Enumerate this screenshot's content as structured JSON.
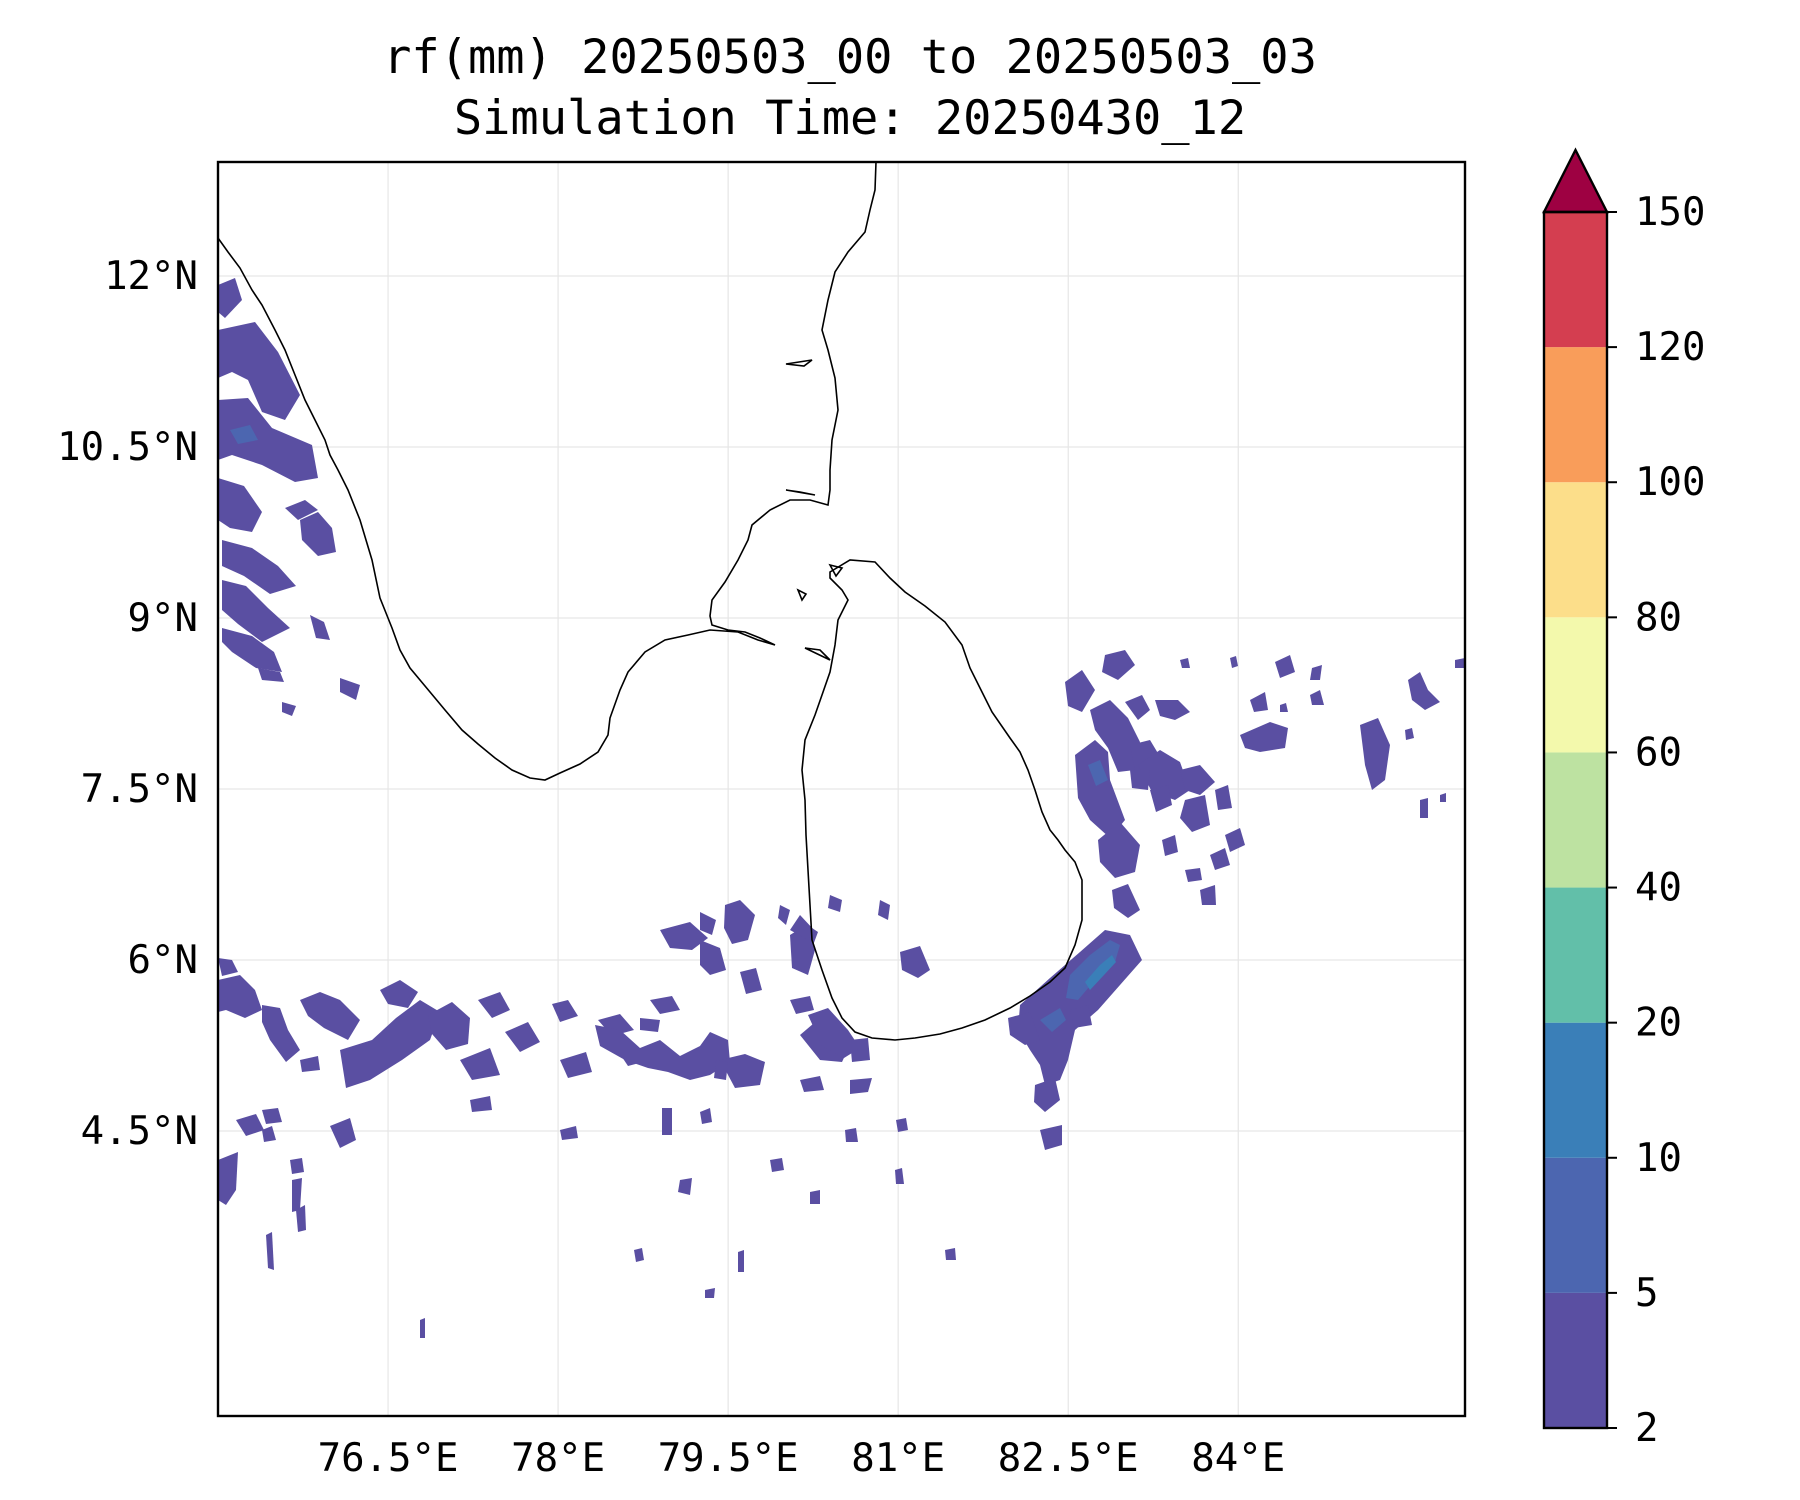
{
  "title": "rf(mm) 20250503_00 to 20250503_03",
  "subtitle": "Simulation Time: 20250430_12",
  "map": {
    "region": "South India and Sri Lanka",
    "lon_range": [
      75.0,
      86.0
    ],
    "lat_range": [
      2.0,
      13.0
    ],
    "lon_ticks": [
      76.5,
      78,
      79.5,
      81,
      82.5,
      84
    ],
    "lon_tick_labels": [
      "76.5°E",
      "78°E",
      "79.5°E",
      "81°E",
      "82.5°E",
      "84°E"
    ],
    "lat_ticks": [
      12,
      10.5,
      9,
      7.5,
      6,
      4.5
    ],
    "lat_tick_labels": [
      "12°N",
      "10.5°N",
      "9°N",
      "7.5°N",
      "6°N",
      "4.5°N"
    ],
    "gridlines": true
  },
  "colorbar": {
    "levels": [
      2,
      5,
      10,
      20,
      40,
      60,
      80,
      100,
      120,
      150
    ],
    "tick_labels": [
      "2",
      "5",
      "10",
      "20",
      "40",
      "60",
      "80",
      "100",
      "120",
      "150"
    ],
    "colors": [
      "#5a4fa2",
      "#4c66b0",
      "#3a7fb8",
      "#62bfa9",
      "#bde2a1",
      "#f3f9ac",
      "#fcde8a",
      "#f99d5a",
      "#d43e50"
    ],
    "extend_color": "#9e0142",
    "extend": "max"
  },
  "chart_data": {
    "type": "heatmap",
    "field": "rf(mm)",
    "units": "mm",
    "rain_areas": [
      {
        "region": "West coast of India (Kerala), ~9–12°N",
        "class": "2–5 mm",
        "color": "#5a4fa2"
      },
      {
        "region": "Band south of Sri Lanka, ~4.5–6.5°N, 75–82°E",
        "class": "2–5 mm",
        "color": "#5a4fa2"
      },
      {
        "region": "East of Sri Lanka, ~6–9°N, 81.5–86°E",
        "class": "2–5 mm",
        "color": "#5a4fa2"
      },
      {
        "region": "SE coast of Sri Lanka, ~6–6.6°N, 81.8–82.5°E",
        "class": "5–10 mm",
        "color": "#4c66b0"
      },
      {
        "region": "SE coast of Sri Lanka peak, ~6.3°N, 82.2°E",
        "class": "10–20 mm",
        "color": "#3a7fb8"
      }
    ]
  }
}
